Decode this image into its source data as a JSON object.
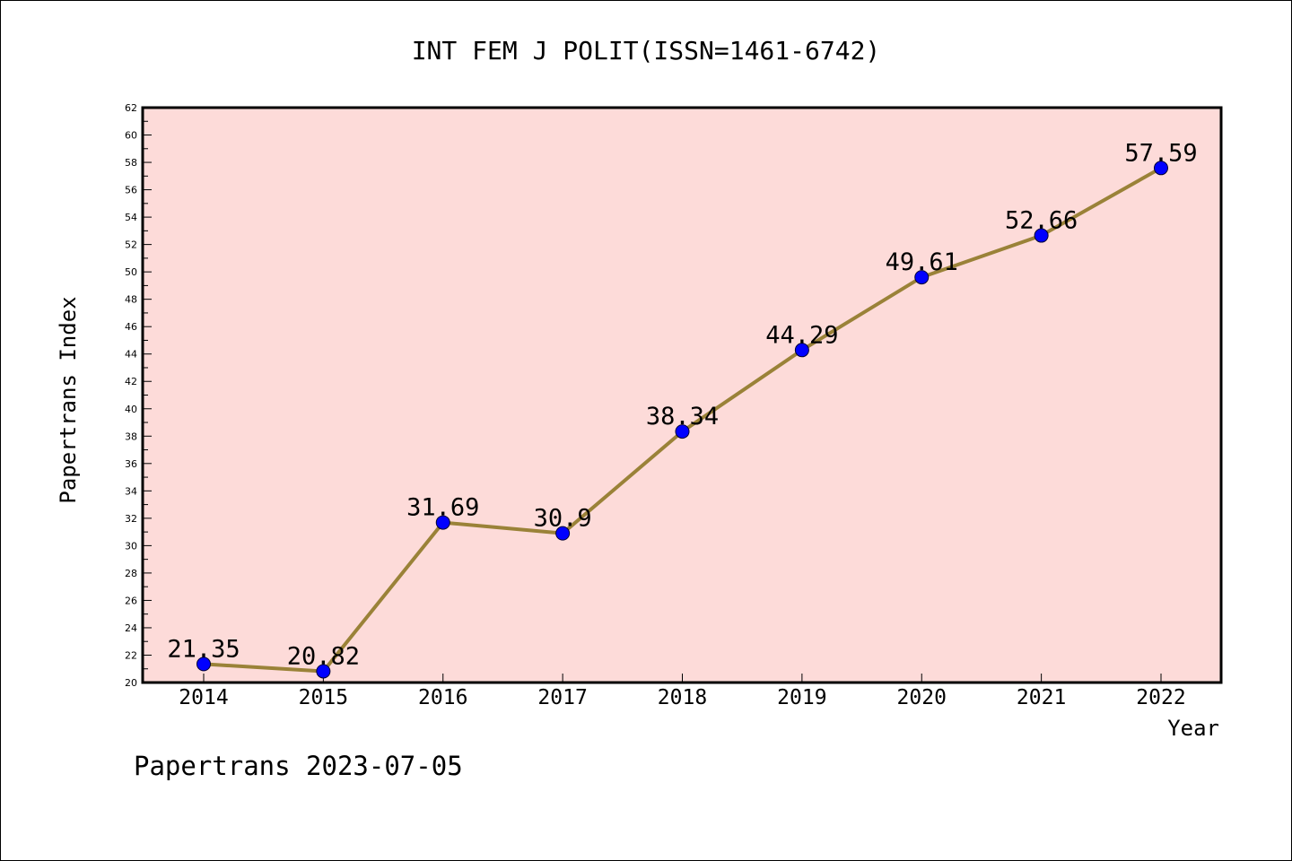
{
  "chart_data": {
    "type": "line",
    "title": "INT FEM J POLIT(ISSN=1461-6742)",
    "xlabel": "Year",
    "ylabel": "Papertrans Index",
    "footer": "Papertrans 2023-07-05",
    "x": [
      "2014",
      "2015",
      "2016",
      "2017",
      "2018",
      "2019",
      "2020",
      "2021",
      "2022"
    ],
    "series": [
      {
        "values": [
          21.35,
          20.82,
          31.69,
          30.9,
          38.34,
          44.29,
          49.61,
          52.66,
          57.59
        ],
        "labels": [
          "21.35",
          "20.82",
          "31.69",
          "30.9",
          "38.34",
          "44.29",
          "49.61",
          "52.66",
          "57.59"
        ]
      }
    ],
    "ylim": [
      20,
      62
    ],
    "yticks": [
      "20",
      "22",
      "24",
      "26",
      "28",
      "30",
      "32",
      "34",
      "36",
      "38",
      "40",
      "42",
      "44",
      "46",
      "48",
      "50",
      "52",
      "54",
      "56",
      "58",
      "60",
      "62"
    ],
    "grid": false,
    "colors": {
      "plot_background": "#fddbd9",
      "line": "#9a8238",
      "marker": "#0000ff"
    }
  }
}
